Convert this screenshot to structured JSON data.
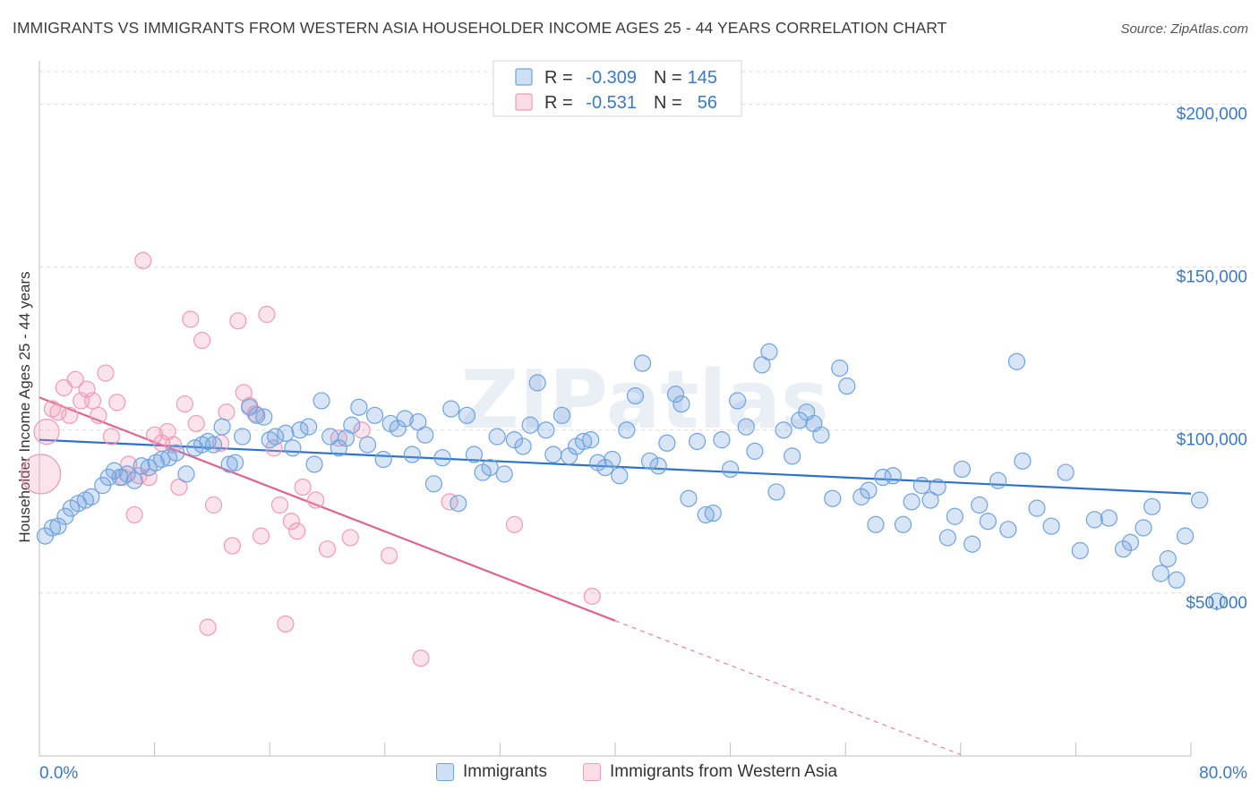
{
  "header": {
    "title": "IMMIGRANTS VS IMMIGRANTS FROM WESTERN ASIA HOUSEHOLDER INCOME AGES 25 - 44 YEARS CORRELATION CHART",
    "source": "Source: ZipAtlas.com"
  },
  "watermark": "ZIPatlas",
  "colors": {
    "blue": "#6fa3e0",
    "blue_line": "#2b72cc",
    "pink": "#f29ab6",
    "pink_line": "#e2628f",
    "axis_text": "#3a78c9"
  },
  "legend": {
    "rows": [
      {
        "r_label": "R =",
        "r_value": "-0.309",
        "n_label": "N =",
        "n_value": "145",
        "color": "blue"
      },
      {
        "r_label": "R =",
        "r_value": "-0.531",
        "n_label": "N =",
        "n_value": "56",
        "color": "pink"
      }
    ]
  },
  "bottom_legend": {
    "items": [
      {
        "label": "Immigrants",
        "color": "blue"
      },
      {
        "label": "Immigrants from Western Asia",
        "color": "pink"
      }
    ]
  },
  "chart_data": {
    "type": "scatter",
    "xlabel": "",
    "ylabel": "Householder Income Ages 25 - 44 years",
    "xlim": [
      0,
      80
    ],
    "ylim": [
      0,
      210000
    ],
    "x_tick_labels": [
      "0.0%",
      "80.0%"
    ],
    "y_ticks": [
      {
        "value": 50000,
        "label": "$50,000"
      },
      {
        "value": 100000,
        "label": "$100,000"
      },
      {
        "value": 150000,
        "label": "$150,000"
      },
      {
        "value": 200000,
        "label": "$200,000"
      }
    ],
    "grid": true,
    "series": [
      {
        "name": "Immigrants",
        "color": "blue",
        "trend": {
          "x": [
            0,
            80
          ],
          "y": [
            97000,
            80500
          ],
          "dashed_x": null
        },
        "points": [
          [
            0.4,
            67500
          ],
          [
            0.9,
            70000
          ],
          [
            1.3,
            70500
          ],
          [
            1.8,
            73500
          ],
          [
            2.2,
            76000
          ],
          [
            2.7,
            77500
          ],
          [
            3.2,
            78500
          ],
          [
            3.6,
            79500
          ],
          [
            4.4,
            83000
          ],
          [
            4.8,
            85500
          ],
          [
            5.2,
            87500
          ],
          [
            5.6,
            85500
          ],
          [
            6.1,
            86500
          ],
          [
            6.6,
            84500
          ],
          [
            7.1,
            89000
          ],
          [
            7.6,
            88500
          ],
          [
            8.1,
            90000
          ],
          [
            8.5,
            91000
          ],
          [
            9.0,
            91500
          ],
          [
            9.5,
            93000
          ],
          [
            10.2,
            86500
          ],
          [
            10.8,
            94500
          ],
          [
            11.3,
            95500
          ],
          [
            11.7,
            96500
          ],
          [
            12.1,
            95500
          ],
          [
            12.7,
            101000
          ],
          [
            13.2,
            89500
          ],
          [
            13.6,
            90000
          ],
          [
            14.1,
            98000
          ],
          [
            14.6,
            107000
          ],
          [
            15.1,
            104500
          ],
          [
            15.6,
            104000
          ],
          [
            16.0,
            97000
          ],
          [
            16.4,
            98000
          ],
          [
            17.1,
            99000
          ],
          [
            17.6,
            94500
          ],
          [
            18.1,
            100000
          ],
          [
            18.7,
            101000
          ],
          [
            19.1,
            89500
          ],
          [
            19.6,
            109000
          ],
          [
            20.2,
            98000
          ],
          [
            20.8,
            94500
          ],
          [
            21.3,
            97500
          ],
          [
            21.7,
            101500
          ],
          [
            22.2,
            107000
          ],
          [
            22.8,
            95500
          ],
          [
            23.3,
            104500
          ],
          [
            23.9,
            91000
          ],
          [
            24.4,
            102000
          ],
          [
            24.9,
            100500
          ],
          [
            25.4,
            103500
          ],
          [
            25.9,
            92500
          ],
          [
            26.3,
            102500
          ],
          [
            26.8,
            98500
          ],
          [
            27.4,
            83500
          ],
          [
            28.0,
            91500
          ],
          [
            28.6,
            106500
          ],
          [
            29.1,
            77500
          ],
          [
            29.7,
            104500
          ],
          [
            30.2,
            92500
          ],
          [
            30.8,
            87000
          ],
          [
            31.3,
            88500
          ],
          [
            31.8,
            98000
          ],
          [
            32.3,
            86500
          ],
          [
            33.0,
            97000
          ],
          [
            33.6,
            95000
          ],
          [
            34.1,
            101500
          ],
          [
            34.6,
            114500
          ],
          [
            35.2,
            100000
          ],
          [
            35.7,
            92500
          ],
          [
            36.3,
            104500
          ],
          [
            36.8,
            92000
          ],
          [
            37.3,
            95000
          ],
          [
            37.8,
            96500
          ],
          [
            38.3,
            97000
          ],
          [
            38.8,
            90000
          ],
          [
            39.3,
            88500
          ],
          [
            39.8,
            91000
          ],
          [
            40.3,
            86000
          ],
          [
            40.8,
            100000
          ],
          [
            41.4,
            110500
          ],
          [
            41.9,
            120500
          ],
          [
            42.4,
            90500
          ],
          [
            43.0,
            89000
          ],
          [
            43.6,
            96000
          ],
          [
            44.2,
            111000
          ],
          [
            44.6,
            108000
          ],
          [
            45.1,
            79000
          ],
          [
            45.7,
            96500
          ],
          [
            46.3,
            74000
          ],
          [
            46.8,
            74500
          ],
          [
            47.4,
            97000
          ],
          [
            48.0,
            88000
          ],
          [
            48.5,
            109000
          ],
          [
            49.1,
            101000
          ],
          [
            49.7,
            93500
          ],
          [
            50.2,
            120000
          ],
          [
            50.7,
            124000
          ],
          [
            51.2,
            81000
          ],
          [
            51.7,
            100000
          ],
          [
            52.3,
            92000
          ],
          [
            52.8,
            103000
          ],
          [
            53.3,
            105500
          ],
          [
            53.8,
            102000
          ],
          [
            54.3,
            98500
          ],
          [
            55.1,
            79000
          ],
          [
            55.6,
            119000
          ],
          [
            56.1,
            113500
          ],
          [
            57.1,
            79500
          ],
          [
            57.6,
            81500
          ],
          [
            58.1,
            71000
          ],
          [
            58.6,
            85500
          ],
          [
            59.3,
            86000
          ],
          [
            60.0,
            71000
          ],
          [
            60.6,
            78000
          ],
          [
            61.3,
            83000
          ],
          [
            61.9,
            78500
          ],
          [
            62.4,
            82500
          ],
          [
            63.1,
            67000
          ],
          [
            63.6,
            73500
          ],
          [
            64.1,
            88000
          ],
          [
            64.8,
            65000
          ],
          [
            65.3,
            77000
          ],
          [
            65.9,
            72000
          ],
          [
            66.6,
            84500
          ],
          [
            67.3,
            69500
          ],
          [
            67.9,
            121000
          ],
          [
            68.3,
            90500
          ],
          [
            69.3,
            76000
          ],
          [
            70.3,
            70500
          ],
          [
            71.3,
            87000
          ],
          [
            72.3,
            63000
          ],
          [
            73.3,
            72500
          ],
          [
            74.3,
            73000
          ],
          [
            75.3,
            63500
          ],
          [
            75.8,
            65500
          ],
          [
            76.7,
            70000
          ],
          [
            77.3,
            76500
          ],
          [
            77.9,
            56000
          ],
          [
            78.4,
            60500
          ],
          [
            79.0,
            54000
          ],
          [
            79.6,
            67500
          ],
          [
            80.6,
            78500
          ],
          [
            81.8,
            47500
          ]
        ]
      },
      {
        "name": "Immigrants from Western Asia",
        "color": "pink",
        "trend": {
          "x": [
            0,
            40
          ],
          "y": [
            110000,
            41500
          ],
          "dashed_x": [
            40,
            64
          ]
        },
        "points": [
          [
            0.1,
            86500
          ],
          [
            0.5,
            99500
          ],
          [
            0.9,
            106500
          ],
          [
            1.3,
            105500
          ],
          [
            1.7,
            113000
          ],
          [
            2.1,
            104500
          ],
          [
            2.5,
            115500
          ],
          [
            2.9,
            109000
          ],
          [
            3.3,
            112500
          ],
          [
            3.7,
            109000
          ],
          [
            4.1,
            104500
          ],
          [
            4.6,
            117500
          ],
          [
            5.0,
            98000
          ],
          [
            5.4,
            108500
          ],
          [
            5.8,
            85500
          ],
          [
            6.2,
            89500
          ],
          [
            6.6,
            74000
          ],
          [
            6.9,
            86000
          ],
          [
            7.2,
            152000
          ],
          [
            7.6,
            85500
          ],
          [
            8.0,
            98500
          ],
          [
            8.5,
            96000
          ],
          [
            8.9,
            99500
          ],
          [
            9.3,
            95500
          ],
          [
            9.7,
            82500
          ],
          [
            10.1,
            108000
          ],
          [
            10.5,
            134000
          ],
          [
            10.9,
            102000
          ],
          [
            11.3,
            127500
          ],
          [
            11.7,
            39500
          ],
          [
            12.1,
            77000
          ],
          [
            12.6,
            96000
          ],
          [
            13.0,
            105500
          ],
          [
            13.4,
            64500
          ],
          [
            13.8,
            133500
          ],
          [
            14.2,
            111500
          ],
          [
            14.6,
            107500
          ],
          [
            15.0,
            105000
          ],
          [
            15.4,
            67500
          ],
          [
            15.8,
            135500
          ],
          [
            16.3,
            94500
          ],
          [
            16.7,
            77000
          ],
          [
            17.1,
            40500
          ],
          [
            17.5,
            72000
          ],
          [
            17.9,
            69000
          ],
          [
            18.3,
            82500
          ],
          [
            19.2,
            78500
          ],
          [
            20.0,
            63500
          ],
          [
            20.8,
            97500
          ],
          [
            21.6,
            67000
          ],
          [
            22.4,
            100000
          ],
          [
            24.3,
            61500
          ],
          [
            26.5,
            30000
          ],
          [
            28.5,
            78000
          ],
          [
            33.0,
            71000
          ],
          [
            38.4,
            49000
          ]
        ]
      }
    ]
  }
}
